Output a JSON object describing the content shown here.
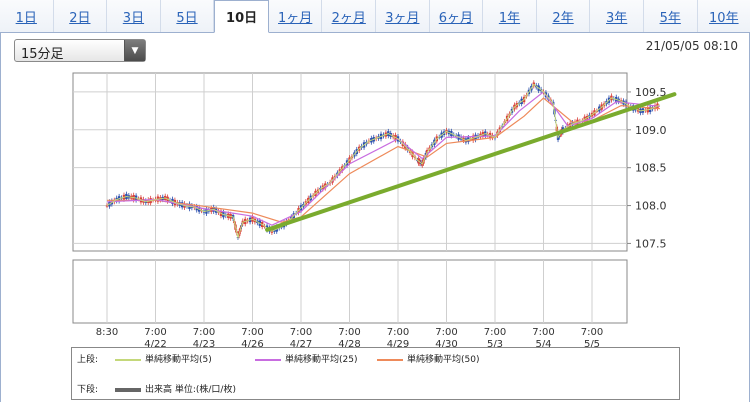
{
  "tabs": [
    "1日",
    "2日",
    "3日",
    "5日",
    "10日",
    "1ヶ月",
    "2ヶ月",
    "3ヶ月",
    "6ヶ月",
    "1年",
    "2年",
    "3年",
    "5年",
    "10年"
  ],
  "active_tab": 4,
  "interval_select": {
    "value": "15分足"
  },
  "timestamp": "21/05/05 08:10",
  "legend": {
    "upper_label": "上段:",
    "lower_label": "下段:",
    "items": [
      {
        "label": "単純移動平均(5)",
        "color": "#c4d87a"
      },
      {
        "label": "単純移動平均(25)",
        "color": "#c86de0"
      },
      {
        "label": "単純移動平均(50)",
        "color": "#ee8a5a"
      }
    ],
    "volume": {
      "label": "出来高 単位:(株/口/枚)",
      "color": "#666666"
    }
  },
  "colors": {
    "trendline": "#7aab2e",
    "candle_up": "#d9413b",
    "candle_down": "#2b4fae",
    "grid": "#cfcfcf"
  },
  "chart_data": {
    "type": "line",
    "title": "",
    "y_ticks": [
      "109.5",
      "109.0",
      "108.5",
      "108.0",
      "107.5"
    ],
    "ylim": [
      107.4,
      109.75
    ],
    "grid": true,
    "x_ticks": [
      {
        "time": "8:30",
        "date": ""
      },
      {
        "time": "7:00",
        "date": "4/22"
      },
      {
        "time": "7:00",
        "date": "4/23"
      },
      {
        "time": "7:00",
        "date": "4/26"
      },
      {
        "time": "7:00",
        "date": "4/27"
      },
      {
        "time": "7:00",
        "date": "4/28"
      },
      {
        "time": "7:00",
        "date": "4/29"
      },
      {
        "time": "7:00",
        "date": "4/30"
      },
      {
        "time": "7:00",
        "date": "5/3"
      },
      {
        "time": "7:00",
        "date": "5/4"
      },
      {
        "time": "7:00",
        "date": "5/5"
      }
    ],
    "trendline": [
      [
        3.3,
        107.68
      ],
      [
        11.7,
        109.47
      ]
    ],
    "price": [
      [
        0.0,
        108.0
      ],
      [
        0.2,
        108.08
      ],
      [
        0.4,
        108.12
      ],
      [
        0.6,
        108.1
      ],
      [
        0.8,
        108.05
      ],
      [
        1.0,
        108.08
      ],
      [
        1.2,
        108.1
      ],
      [
        1.4,
        108.04
      ],
      [
        1.6,
        108.0
      ],
      [
        1.8,
        107.98
      ],
      [
        2.0,
        107.92
      ],
      [
        2.2,
        107.95
      ],
      [
        2.4,
        107.88
      ],
      [
        2.6,
        107.85
      ],
      [
        2.7,
        107.58
      ],
      [
        2.8,
        107.78
      ],
      [
        3.0,
        107.82
      ],
      [
        3.2,
        107.75
      ],
      [
        3.4,
        107.66
      ],
      [
        3.6,
        107.72
      ],
      [
        3.8,
        107.83
      ],
      [
        4.0,
        107.97
      ],
      [
        4.2,
        108.1
      ],
      [
        4.4,
        108.22
      ],
      [
        4.6,
        108.3
      ],
      [
        4.8,
        108.45
      ],
      [
        5.0,
        108.6
      ],
      [
        5.2,
        108.75
      ],
      [
        5.4,
        108.85
      ],
      [
        5.6,
        108.9
      ],
      [
        5.8,
        108.95
      ],
      [
        6.0,
        108.88
      ],
      [
        6.2,
        108.75
      ],
      [
        6.4,
        108.6
      ],
      [
        6.5,
        108.55
      ],
      [
        6.6,
        108.7
      ],
      [
        6.8,
        108.88
      ],
      [
        7.0,
        108.98
      ],
      [
        7.2,
        108.92
      ],
      [
        7.4,
        108.86
      ],
      [
        7.6,
        108.9
      ],
      [
        7.8,
        108.95
      ],
      [
        8.0,
        108.9
      ],
      [
        8.2,
        109.1
      ],
      [
        8.4,
        109.3
      ],
      [
        8.6,
        109.4
      ],
      [
        8.8,
        109.6
      ],
      [
        9.0,
        109.5
      ],
      [
        9.2,
        109.35
      ],
      [
        9.3,
        108.9
      ],
      [
        9.4,
        109.0
      ],
      [
        9.6,
        109.08
      ],
      [
        9.8,
        109.12
      ],
      [
        10.0,
        109.2
      ],
      [
        10.2,
        109.3
      ],
      [
        10.4,
        109.42
      ],
      [
        10.6,
        109.38
      ],
      [
        10.8,
        109.3
      ],
      [
        11.0,
        109.25
      ],
      [
        11.2,
        109.27
      ],
      [
        11.4,
        109.33
      ]
    ],
    "ma25": [
      [
        0.0,
        108.05
      ],
      [
        1.0,
        108.08
      ],
      [
        2.0,
        107.96
      ],
      [
        3.0,
        107.86
      ],
      [
        3.4,
        107.74
      ],
      [
        4.0,
        107.92
      ],
      [
        5.0,
        108.55
      ],
      [
        6.0,
        108.88
      ],
      [
        6.5,
        108.62
      ],
      [
        7.0,
        108.9
      ],
      [
        8.0,
        108.92
      ],
      [
        8.5,
        109.25
      ],
      [
        9.0,
        109.5
      ],
      [
        9.5,
        109.05
      ],
      [
        10.0,
        109.15
      ],
      [
        10.5,
        109.37
      ],
      [
        11.4,
        109.31
      ]
    ],
    "ma50": [
      [
        0.0,
        108.07
      ],
      [
        1.0,
        108.07
      ],
      [
        2.0,
        107.99
      ],
      [
        3.0,
        107.9
      ],
      [
        3.6,
        107.78
      ],
      [
        4.0,
        107.85
      ],
      [
        5.0,
        108.42
      ],
      [
        6.0,
        108.78
      ],
      [
        6.6,
        108.64
      ],
      [
        7.0,
        108.82
      ],
      [
        8.0,
        108.9
      ],
      [
        8.6,
        109.18
      ],
      [
        9.0,
        109.42
      ],
      [
        9.6,
        109.1
      ],
      [
        10.0,
        109.12
      ],
      [
        10.6,
        109.32
      ],
      [
        11.4,
        109.28
      ]
    ]
  }
}
